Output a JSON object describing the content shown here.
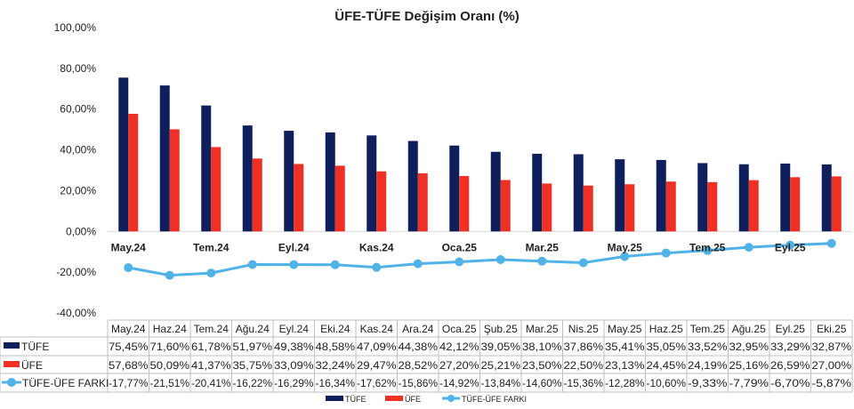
{
  "chart_data": {
    "type": "bar",
    "title": "ÜFE-TÜFE Değişim Oranı (%)",
    "xlabel": "",
    "ylabel": "",
    "ylim": [
      -40,
      100
    ],
    "yticks": [
      "100,00%",
      "80,00%",
      "60,00%",
      "40,00%",
      "20,00%",
      "0,00%",
      "-20,00%",
      "-40,00%"
    ],
    "ytick_values": [
      100,
      80,
      60,
      40,
      20,
      0,
      -20,
      -40
    ],
    "grid": false,
    "legend_position": "bottom",
    "categories": [
      "May.24",
      "Haz.24",
      "Tem.24",
      "Ağu.24",
      "Eyl.24",
      "Eki.24",
      "Kas.24",
      "Ara.24",
      "Oca.25",
      "Şub.25",
      "Mar.25",
      "Nis.25",
      "May.25",
      "Haz.25",
      "Tem.25",
      "Ağu.25",
      "Eyl.25",
      "Eki.25"
    ],
    "axis_labels": [
      "May.24",
      "Tem.24",
      "Eyl.24",
      "Kas.24",
      "Oca.25",
      "Mar.25",
      "May.25",
      "Tem.25",
      "Eyl.25"
    ],
    "series": [
      {
        "name": "TÜFE",
        "type": "bar",
        "color": "#0f1f5c",
        "values": [
          75.45,
          71.6,
          61.78,
          51.97,
          49.38,
          48.58,
          47.09,
          44.38,
          42.12,
          39.05,
          38.1,
          37.86,
          35.41,
          35.05,
          33.52,
          32.95,
          33.29,
          32.87
        ],
        "labels": [
          "75,45%",
          "71,60%",
          "61,78%",
          "51,97%",
          "49,38%",
          "48,58%",
          "47,09%",
          "44,38%",
          "42,12%",
          "39,05%",
          "38,10%",
          "37,86%",
          "35,41%",
          "35,05%",
          "33,52%",
          "32,95%",
          "33,29%",
          "32,87%"
        ]
      },
      {
        "name": "ÜFE",
        "type": "bar",
        "color": "#ee3124",
        "values": [
          57.68,
          50.09,
          41.37,
          35.75,
          33.09,
          32.24,
          29.47,
          28.52,
          27.2,
          25.21,
          23.5,
          22.5,
          23.13,
          24.45,
          24.19,
          25.16,
          26.59,
          27.0
        ],
        "labels": [
          "57,68%",
          "50,09%",
          "41,37%",
          "35,75%",
          "33,09%",
          "32,24%",
          "29,47%",
          "28,52%",
          "27,20%",
          "25,21%",
          "23,50%",
          "22,50%",
          "23,13%",
          "24,45%",
          "24,19%",
          "25,16%",
          "26,59%",
          "27,00%"
        ]
      },
      {
        "name": "TÜFE-ÜFE FARKI",
        "type": "line",
        "color": "#4fb3e8",
        "values": [
          -17.77,
          -21.51,
          -20.41,
          -16.22,
          -16.29,
          -16.34,
          -17.62,
          -15.86,
          -14.92,
          -13.84,
          -14.6,
          -15.36,
          -12.28,
          -10.6,
          -9.33,
          -7.79,
          -6.7,
          -5.87
        ],
        "labels": [
          "-17,77%",
          "-21,51%",
          "-20,41%",
          "-16,22%",
          "-16,29%",
          "-16,34%",
          "-17,62%",
          "-15,86%",
          "-14,92%",
          "-13,84%",
          "-14,60%",
          "-15,36%",
          "-12,28%",
          "-10,60%",
          "-9,33%",
          "-7,79%",
          "-6,70%",
          "-5,87%"
        ]
      }
    ]
  }
}
